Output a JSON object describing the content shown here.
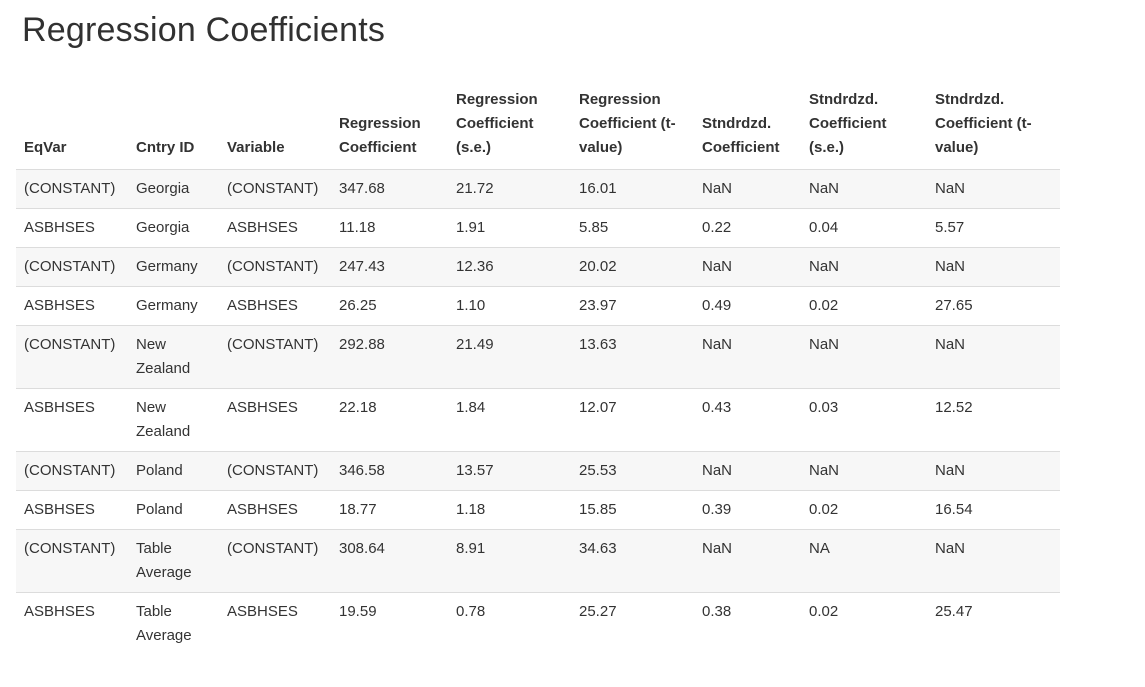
{
  "page": {
    "title": "Regression Coefficients"
  },
  "colors": {
    "text": "#333333",
    "stripe": "#f7f7f7",
    "border": "#dcdcdc",
    "background": "#ffffff"
  },
  "table": {
    "columns": [
      {
        "key": "eqvar",
        "label": "EqVar"
      },
      {
        "key": "cntry-id",
        "label": "Cntry ID"
      },
      {
        "key": "variable",
        "label": "Variable"
      },
      {
        "key": "reg-coef",
        "label": "Regression Coefficient"
      },
      {
        "key": "reg-coef-se",
        "label": "Regression Coefficient (s.e.)"
      },
      {
        "key": "reg-coef-t",
        "label": "Regression Coefficient (t-value)"
      },
      {
        "key": "std-coef",
        "label": "Stndrdzd. Coefficient"
      },
      {
        "key": "std-coef-se",
        "label": "Stndrdzd. Coefficient (s.e.)"
      },
      {
        "key": "std-coef-t",
        "label": "Stndrdzd. Coefficient (t-value)"
      }
    ],
    "rows": [
      [
        "(CONSTANT)",
        "Georgia",
        "(CONSTANT)",
        "347.68",
        "21.72",
        "16.01",
        "NaN",
        "NaN",
        "NaN"
      ],
      [
        "ASBHSES",
        "Georgia",
        "ASBHSES",
        "11.18",
        "1.91",
        "5.85",
        "0.22",
        "0.04",
        "5.57"
      ],
      [
        "(CONSTANT)",
        "Germany",
        "(CONSTANT)",
        "247.43",
        "12.36",
        "20.02",
        "NaN",
        "NaN",
        "NaN"
      ],
      [
        "ASBHSES",
        "Germany",
        "ASBHSES",
        "26.25",
        "1.10",
        "23.97",
        "0.49",
        "0.02",
        "27.65"
      ],
      [
        "(CONSTANT)",
        "New Zealand",
        "(CONSTANT)",
        "292.88",
        "21.49",
        "13.63",
        "NaN",
        "NaN",
        "NaN"
      ],
      [
        "ASBHSES",
        "New Zealand",
        "ASBHSES",
        "22.18",
        "1.84",
        "12.07",
        "0.43",
        "0.03",
        "12.52"
      ],
      [
        "(CONSTANT)",
        "Poland",
        "(CONSTANT)",
        "346.58",
        "13.57",
        "25.53",
        "NaN",
        "NaN",
        "NaN"
      ],
      [
        "ASBHSES",
        "Poland",
        "ASBHSES",
        "18.77",
        "1.18",
        "15.85",
        "0.39",
        "0.02",
        "16.54"
      ],
      [
        "(CONSTANT)",
        "Table Average",
        "(CONSTANT)",
        "308.64",
        "8.91",
        "34.63",
        "NaN",
        "NA",
        "NaN"
      ],
      [
        "ASBHSES",
        "Table Average",
        "ASBHSES",
        "19.59",
        "0.78",
        "25.27",
        "0.38",
        "0.02",
        "25.47"
      ]
    ]
  }
}
